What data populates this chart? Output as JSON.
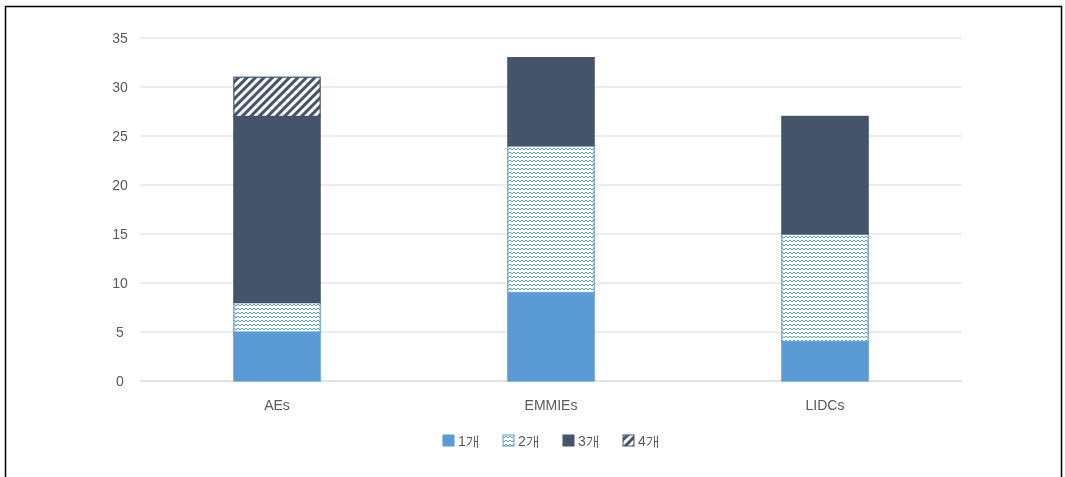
{
  "chart_data": {
    "type": "bar",
    "stacked": true,
    "categories": [
      "AEs",
      "EMMIEs",
      "LIDCs"
    ],
    "series": [
      {
        "name": "1개",
        "color": "#5b9bd5",
        "values": [
          5,
          9,
          4
        ]
      },
      {
        "name": "2개",
        "color": "#5b9bd5",
        "values": [
          3,
          15,
          11
        ]
      },
      {
        "name": "3개",
        "color": "#44546a",
        "values": [
          19,
          9,
          12
        ]
      },
      {
        "name": "4개",
        "color": "#44546a",
        "values": [
          4,
          null,
          null
        ]
      }
    ],
    "ylim": [
      0,
      35
    ],
    "yticks": [
      0,
      5,
      10,
      15,
      20,
      25,
      30,
      35
    ],
    "grid": "y",
    "legend": "bottom"
  }
}
